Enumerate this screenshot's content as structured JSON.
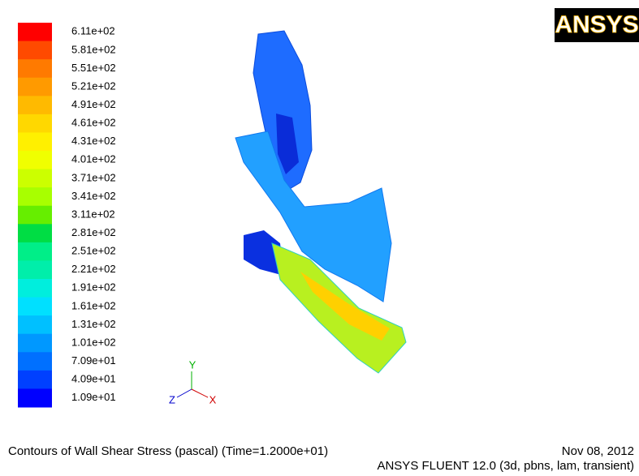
{
  "colorbar": {
    "labels": [
      "6.11e+02",
      "5.81e+02",
      "5.51e+02",
      "5.21e+02",
      "4.91e+02",
      "4.61e+02",
      "4.31e+02",
      "4.01e+02",
      "3.71e+02",
      "3.41e+02",
      "3.11e+02",
      "2.81e+02",
      "2.51e+02",
      "2.21e+02",
      "1.91e+02",
      "1.61e+02",
      "1.31e+02",
      "1.01e+02",
      "7.09e+01",
      "4.09e+01",
      "1.09e+01"
    ],
    "colors": [
      "#ff0000",
      "#ff4a00",
      "#ff7a00",
      "#ff9a00",
      "#ffba00",
      "#ffd800",
      "#fff000",
      "#f0ff00",
      "#ccff00",
      "#a8ff00",
      "#66ee00",
      "#00dd44",
      "#00ee88",
      "#00eeaa",
      "#00eedd",
      "#00e0ff",
      "#00c0ff",
      "#0098ff",
      "#0070ff",
      "#0040ff",
      "#0000ff"
    ]
  },
  "logo": "ANSYS",
  "triad": {
    "y": "Y",
    "z": "Z",
    "x": "X"
  },
  "footer": {
    "caption": "Contours of Wall Shear Stress (pascal)  (Time=1.2000e+01)",
    "date": "Nov 08, 2012",
    "version": "ANSYS FLUENT 12.0 (3d, pbns, lam, transient)"
  }
}
